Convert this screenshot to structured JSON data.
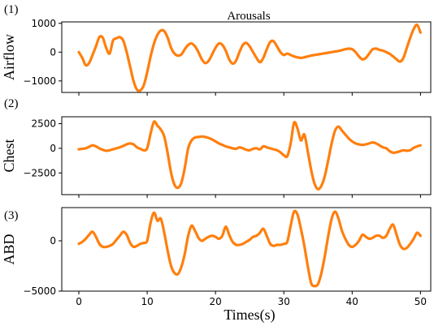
{
  "figure": {
    "title": "Arousals",
    "xlabel": "Times(s)"
  },
  "style": {
    "line_color": "#ff7f0e"
  },
  "chart_data": [
    {
      "type": "line",
      "panel_label": "(1)",
      "ylabel": "Airflow",
      "xlim": [
        -2.5,
        51.5
      ],
      "ylim": [
        -1400,
        1050
      ],
      "xticks": [
        0,
        10,
        20,
        30,
        40,
        50
      ],
      "yticks": [
        -1000,
        0,
        1000
      ],
      "ytick_labels": [
        "−1000",
        "0",
        "1000"
      ],
      "series": [
        {
          "x": [
            0,
            0.5,
            1,
            1.5,
            2,
            2.5,
            3,
            3.5,
            4,
            4.5,
            5,
            5.5,
            6,
            6.5,
            7,
            7.5,
            8,
            8.5,
            9,
            9.5,
            10,
            10.5,
            11,
            11.5,
            12,
            12.5,
            13,
            13.5,
            14,
            14.5,
            15,
            15.5,
            16,
            16.5,
            17,
            17.5,
            18,
            18.5,
            19,
            19.5,
            20,
            20.5,
            21,
            21.5,
            22,
            22.5,
            23,
            23.5,
            24,
            24.5,
            25,
            25.5,
            26,
            26.5,
            27,
            27.5,
            28,
            28.5,
            29,
            29.5,
            30,
            30.5,
            31,
            31.5,
            32,
            32.5,
            33,
            33.5,
            34,
            34.5,
            35,
            35.5,
            36,
            36.5,
            37,
            37.5,
            38,
            38.5,
            39,
            39.5,
            40,
            40.5,
            41,
            41.5,
            42,
            42.5,
            43,
            43.5,
            44,
            44.5,
            45,
            45.5,
            46,
            46.5,
            47,
            47.5,
            48,
            48.5,
            49,
            49.5,
            50
          ],
          "y": [
            0,
            -200,
            -450,
            -380,
            -100,
            200,
            520,
            500,
            150,
            -50,
            400,
            480,
            520,
            400,
            0,
            -500,
            -1000,
            -1300,
            -1330,
            -1150,
            -700,
            -150,
            300,
            600,
            750,
            730,
            500,
            150,
            -50,
            -120,
            -80,
            100,
            250,
            300,
            200,
            0,
            -250,
            -380,
            -300,
            -80,
            150,
            300,
            250,
            50,
            -250,
            -400,
            -300,
            0,
            250,
            320,
            200,
            0,
            -200,
            -350,
            -200,
            100,
            350,
            380,
            200,
            0,
            -100,
            -50,
            -100,
            -150,
            -180,
            -200,
            -180,
            -150,
            -120,
            -100,
            -80,
            -60,
            -40,
            -20,
            0,
            20,
            40,
            70,
            100,
            120,
            100,
            0,
            -150,
            -250,
            -200,
            -50,
            100,
            120,
            80,
            50,
            0,
            -60,
            -150,
            -250,
            -330,
            -200,
            150,
            500,
            800,
            950,
            680
          ]
        }
      ]
    },
    {
      "type": "line",
      "panel_label": "(2)",
      "ylabel": "Chest",
      "xlim": [
        -2.5,
        51.5
      ],
      "ylim": [
        -4700,
        3200
      ],
      "xticks": [
        0,
        10,
        20,
        30,
        40,
        50
      ],
      "yticks": [
        -2500,
        0,
        2500
      ],
      "ytick_labels": [
        "−2500",
        "0",
        "2500"
      ],
      "series": [
        {
          "x": [
            0,
            0.5,
            1,
            1.5,
            2,
            2.5,
            3,
            3.5,
            4,
            4.5,
            5,
            5.5,
            6,
            6.5,
            7,
            7.5,
            8,
            8.5,
            9,
            9.5,
            10,
            10.5,
            11,
            11.5,
            12,
            12.5,
            13,
            13.5,
            14,
            14.5,
            15,
            15.5,
            16,
            16.5,
            17,
            17.5,
            18,
            18.5,
            19,
            19.5,
            20,
            20.5,
            21,
            21.5,
            22,
            22.5,
            23,
            23.5,
            24,
            24.5,
            25,
            25.5,
            26,
            26.5,
            27,
            27.5,
            28,
            28.5,
            29,
            29.5,
            30,
            30.5,
            31,
            31.5,
            32,
            32.5,
            33,
            33.5,
            34,
            34.5,
            35,
            35.5,
            36,
            36.5,
            37,
            37.5,
            38,
            38.5,
            39,
            39.5,
            40,
            40.5,
            41,
            41.5,
            42,
            42.5,
            43,
            43.5,
            44,
            44.5,
            45,
            45.5,
            46,
            46.5,
            47,
            47.5,
            48,
            48.5,
            49,
            49.5,
            50
          ],
          "y": [
            -100,
            -50,
            0,
            150,
            300,
            200,
            0,
            -150,
            -250,
            -200,
            -100,
            0,
            100,
            250,
            400,
            500,
            400,
            100,
            -50,
            -200,
            0,
            1500,
            2700,
            2300,
            1900,
            1200,
            -500,
            -2500,
            -3700,
            -4000,
            -3500,
            -2000,
            0,
            800,
            1100,
            1150,
            1200,
            1150,
            1050,
            900,
            700,
            500,
            350,
            200,
            100,
            0,
            -50,
            100,
            0,
            -150,
            -200,
            -50,
            0,
            -100,
            200,
            100,
            0,
            -100,
            -200,
            -400,
            -700,
            -800,
            500,
            2600,
            2000,
            800,
            1400,
            -300,
            -2200,
            -3600,
            -4150,
            -3800,
            -2800,
            -1200,
            500,
            1800,
            2200,
            1800,
            1400,
            1000,
            700,
            500,
            400,
            350,
            400,
            500,
            600,
            500,
            300,
            100,
            0,
            -300,
            -450,
            -400,
            -300,
            -200,
            -250,
            -200,
            50,
            200,
            300
          ]
        }
      ]
    },
    {
      "type": "line",
      "panel_label": "(3)",
      "ylabel": "ABD",
      "xlim": [
        -2.5,
        51.5
      ],
      "ylim": [
        -5000,
        3300
      ],
      "xticks": [
        0,
        10,
        20,
        30,
        40,
        50
      ],
      "yticks": [
        -5000,
        0
      ],
      "ytick_labels": [
        "−5000",
        "0"
      ],
      "series": [
        {
          "x": [
            0,
            0.5,
            1,
            1.5,
            2,
            2.5,
            3,
            3.5,
            4,
            4.5,
            5,
            5.5,
            6,
            6.5,
            7,
            7.5,
            8,
            8.5,
            9,
            9.5,
            10,
            10.5,
            11,
            11.5,
            12,
            12.5,
            13,
            13.5,
            14,
            14.5,
            15,
            15.5,
            16,
            16.5,
            17,
            17.5,
            18,
            18.5,
            19,
            19.5,
            20,
            20.5,
            21,
            21.5,
            22,
            22.5,
            23,
            23.5,
            24,
            24.5,
            25,
            25.5,
            26,
            26.5,
            27,
            27.5,
            28,
            28.5,
            29,
            29.5,
            30,
            30.5,
            31,
            31.5,
            32,
            32.5,
            33,
            33.5,
            34,
            34.5,
            35,
            35.5,
            36,
            36.5,
            37,
            37.5,
            38,
            38.5,
            39,
            39.5,
            40,
            40.5,
            41,
            41.5,
            42,
            42.5,
            43,
            43.5,
            44,
            44.5,
            45,
            45.5,
            46,
            46.5,
            47,
            47.5,
            48,
            48.5,
            49,
            49.5,
            50
          ],
          "y": [
            -300,
            -100,
            200,
            600,
            900,
            400,
            -300,
            -600,
            -600,
            -500,
            -300,
            100,
            500,
            900,
            600,
            -200,
            -600,
            -500,
            -300,
            -200,
            0,
            1800,
            2800,
            2000,
            2200,
            800,
            -1000,
            -2500,
            -3200,
            -3300,
            -2600,
            -1300,
            500,
            1500,
            1000,
            300,
            0,
            200,
            400,
            500,
            400,
            200,
            500,
            1400,
            600,
            -100,
            -400,
            -400,
            -300,
            -100,
            100,
            400,
            500,
            800,
            1200,
            500,
            -300,
            -500,
            -400,
            -400,
            -300,
            -100,
            1500,
            2900,
            2600,
            1200,
            -500,
            -2500,
            -4200,
            -4500,
            -4300,
            -3200,
            -1500,
            500,
            2200,
            2900,
            2200,
            1000,
            200,
            -400,
            -600,
            -400,
            0,
            600,
            400,
            200,
            300,
            500,
            500,
            300,
            500,
            1200,
            1600,
            600,
            -400,
            -800,
            -700,
            -300,
            200,
            800,
            500
          ]
        }
      ]
    }
  ]
}
